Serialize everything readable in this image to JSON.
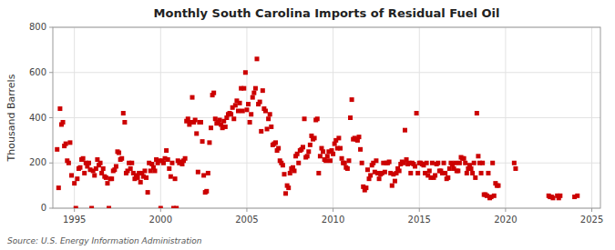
{
  "chart_data": {
    "type": "scatter",
    "title": "Monthly South Carolina Imports of Residual Fuel Oil",
    "ylabel": "Thousand Barrels",
    "source": "Source: U.S. Energy Information Administration",
    "color": "#cc0000",
    "marker": "square",
    "grid": true,
    "xlim": [
      1993.75,
      2025.5
    ],
    "ylim": [
      0,
      800
    ],
    "xticks": [
      1995,
      2000,
      2005,
      2010,
      2015,
      2020,
      2025
    ],
    "yticks": [
      0,
      200,
      400,
      600,
      800
    ],
    "x": [
      1994.0,
      1994.083,
      1994.167,
      1994.25,
      1994.333,
      1994.417,
      1994.5,
      1994.583,
      1994.667,
      1994.75,
      1994.833,
      1995.0,
      1995.083,
      1995.167,
      1995.25,
      1995.333,
      1995.417,
      1995.5,
      1995.583,
      1995.667,
      1995.75,
      1995.833,
      1995.917,
      1996.0,
      1996.083,
      1996.167,
      1996.25,
      1996.333,
      1996.417,
      1996.5,
      1996.583,
      1996.667,
      1996.75,
      1996.833,
      1996.917,
      1997.0,
      1997.083,
      1997.167,
      1997.25,
      1997.333,
      1997.417,
      1997.5,
      1997.583,
      1997.667,
      1997.75,
      1997.833,
      1997.917,
      1998.0,
      1998.083,
      1998.167,
      1998.25,
      1998.333,
      1998.417,
      1998.5,
      1998.583,
      1998.667,
      1998.75,
      1998.833,
      1998.917,
      1999.0,
      1999.083,
      1999.167,
      1999.25,
      1999.333,
      1999.417,
      1999.5,
      1999.583,
      1999.667,
      1999.75,
      1999.833,
      1999.917,
      2000.0,
      2000.083,
      2000.167,
      2000.25,
      2000.333,
      2000.417,
      2000.5,
      2000.583,
      2000.667,
      2000.75,
      2000.833,
      2000.917,
      2001.0,
      2001.083,
      2001.167,
      2001.25,
      2001.333,
      2001.417,
      2001.5,
      2001.583,
      2001.667,
      2001.75,
      2001.833,
      2001.917,
      2002.0,
      2002.083,
      2002.167,
      2002.25,
      2002.333,
      2002.417,
      2002.5,
      2002.583,
      2002.667,
      2002.75,
      2002.833,
      2002.917,
      2003.0,
      2003.083,
      2003.167,
      2003.25,
      2003.333,
      2003.417,
      2003.5,
      2003.583,
      2003.667,
      2003.75,
      2003.833,
      2003.917,
      2004.0,
      2004.083,
      2004.167,
      2004.25,
      2004.333,
      2004.417,
      2004.5,
      2004.583,
      2004.667,
      2004.75,
      2004.833,
      2004.917,
      2005.0,
      2005.083,
      2005.167,
      2005.25,
      2005.333,
      2005.417,
      2005.5,
      2005.583,
      2005.667,
      2005.75,
      2005.833,
      2005.917,
      2006.0,
      2006.083,
      2006.167,
      2006.25,
      2006.333,
      2006.417,
      2006.5,
      2006.583,
      2006.667,
      2006.75,
      2006.833,
      2006.917,
      2007.0,
      2007.083,
      2007.167,
      2007.25,
      2007.333,
      2007.417,
      2007.5,
      2007.583,
      2007.667,
      2007.75,
      2007.833,
      2007.917,
      2008.0,
      2008.083,
      2008.167,
      2008.25,
      2008.333,
      2008.417,
      2008.5,
      2008.583,
      2008.667,
      2008.75,
      2008.833,
      2008.917,
      2009.0,
      2009.083,
      2009.167,
      2009.25,
      2009.333,
      2009.417,
      2009.5,
      2009.583,
      2009.667,
      2009.75,
      2009.833,
      2009.917,
      2010.0,
      2010.083,
      2010.167,
      2010.25,
      2010.333,
      2010.417,
      2010.5,
      2010.583,
      2010.667,
      2010.75,
      2010.833,
      2010.917,
      2011.0,
      2011.083,
      2011.167,
      2011.25,
      2011.333,
      2011.417,
      2011.5,
      2011.583,
      2011.667,
      2011.75,
      2011.833,
      2011.917,
      2012.0,
      2012.083,
      2012.167,
      2012.25,
      2012.333,
      2012.417,
      2012.5,
      2012.583,
      2012.667,
      2012.75,
      2012.833,
      2012.917,
      2013.0,
      2013.083,
      2013.167,
      2013.25,
      2013.333,
      2013.417,
      2013.5,
      2013.583,
      2013.667,
      2013.75,
      2013.833,
      2013.917,
      2014.0,
      2014.083,
      2014.167,
      2014.25,
      2014.333,
      2014.417,
      2014.5,
      2014.583,
      2014.667,
      2014.75,
      2014.833,
      2014.917,
      2015.0,
      2015.083,
      2015.167,
      2015.25,
      2015.333,
      2015.417,
      2015.5,
      2015.583,
      2015.667,
      2015.75,
      2015.833,
      2015.917,
      2016.0,
      2016.083,
      2016.167,
      2016.25,
      2016.333,
      2016.417,
      2016.5,
      2016.583,
      2016.667,
      2016.75,
      2016.833,
      2016.917,
      2017.0,
      2017.083,
      2017.167,
      2017.25,
      2017.333,
      2017.417,
      2017.5,
      2017.583,
      2017.667,
      2017.75,
      2017.833,
      2017.917,
      2018.0,
      2018.083,
      2018.167,
      2018.25,
      2018.333,
      2018.417,
      2018.5,
      2018.583,
      2018.667,
      2018.75,
      2018.833,
      2018.917,
      2019.0,
      2019.083,
      2019.167,
      2019.25,
      2019.333,
      2019.417,
      2019.5,
      2019.583,
      2020.5,
      2020.583,
      2022.5,
      2022.583,
      2022.667,
      2022.75,
      2023.0,
      2023.083,
      2023.167,
      2024.0,
      2024.167
    ],
    "values": [
      260,
      90,
      440,
      370,
      380,
      275,
      285,
      210,
      200,
      290,
      145,
      110,
      0,
      130,
      175,
      180,
      215,
      220,
      155,
      200,
      185,
      200,
      170,
      0,
      165,
      145,
      175,
      215,
      190,
      200,
      155,
      175,
      140,
      135,
      110,
      0,
      130,
      130,
      165,
      170,
      185,
      250,
      245,
      215,
      220,
      420,
      380,
      155,
      165,
      200,
      175,
      200,
      155,
      130,
      145,
      135,
      155,
      115,
      155,
      140,
      165,
      135,
      70,
      200,
      165,
      195,
      180,
      165,
      215,
      200,
      210,
      0,
      210,
      200,
      220,
      255,
      215,
      175,
      140,
      200,
      0,
      130,
      0,
      210,
      200,
      205,
      195,
      210,
      220,
      385,
      395,
      370,
      380,
      490,
      380,
      390,
      330,
      160,
      380,
      380,
      295,
      145,
      70,
      75,
      155,
      290,
      355,
      500,
      510,
      395,
      375,
      380,
      390,
      370,
      355,
      385,
      360,
      400,
      415,
      420,
      415,
      445,
      395,
      455,
      475,
      430,
      465,
      530,
      430,
      530,
      600,
      435,
      460,
      380,
      415,
      490,
      510,
      530,
      660,
      460,
      470,
      340,
      520,
      440,
      430,
      350,
      395,
      415,
      360,
      280,
      285,
      290,
      255,
      265,
      210,
      200,
      190,
      150,
      65,
      100,
      90,
      155,
      175,
      180,
      165,
      230,
      240,
      200,
      255,
      260,
      270,
      395,
      225,
      230,
      250,
      280,
      320,
      305,
      310,
      390,
      395,
      155,
      230,
      265,
      250,
      215,
      210,
      230,
      250,
      210,
      255,
      240,
      285,
      300,
      265,
      310,
      265,
      220,
      200,
      200,
      180,
      175,
      210,
      400,
      480,
      305,
      310,
      305,
      300,
      315,
      260,
      200,
      95,
      80,
      90,
      170,
      130,
      145,
      190,
      200,
      160,
      210,
      155,
      130,
      150,
      155,
      200,
      160,
      200,
      200,
      205,
      155,
      100,
      150,
      120,
      155,
      175,
      165,
      195,
      205,
      200,
      345,
      215,
      195,
      200,
      155,
      200,
      195,
      185,
      420,
      155,
      200,
      200,
      195,
      190,
      155,
      200,
      145,
      165,
      135,
      200,
      135,
      145,
      195,
      200,
      165,
      165,
      155,
      200,
      155,
      130,
      135,
      175,
      200,
      195,
      175,
      200,
      165,
      165,
      200,
      225,
      220,
      220,
      200,
      155,
      175,
      190,
      175,
      155,
      200,
      135,
      420,
      230,
      200,
      155,
      200,
      60,
      60,
      55,
      155,
      45,
      50,
      200,
      55,
      110,
      100,
      100,
      200,
      175,
      55,
      50,
      50,
      45,
      55,
      45,
      55,
      50,
      55
    ]
  }
}
